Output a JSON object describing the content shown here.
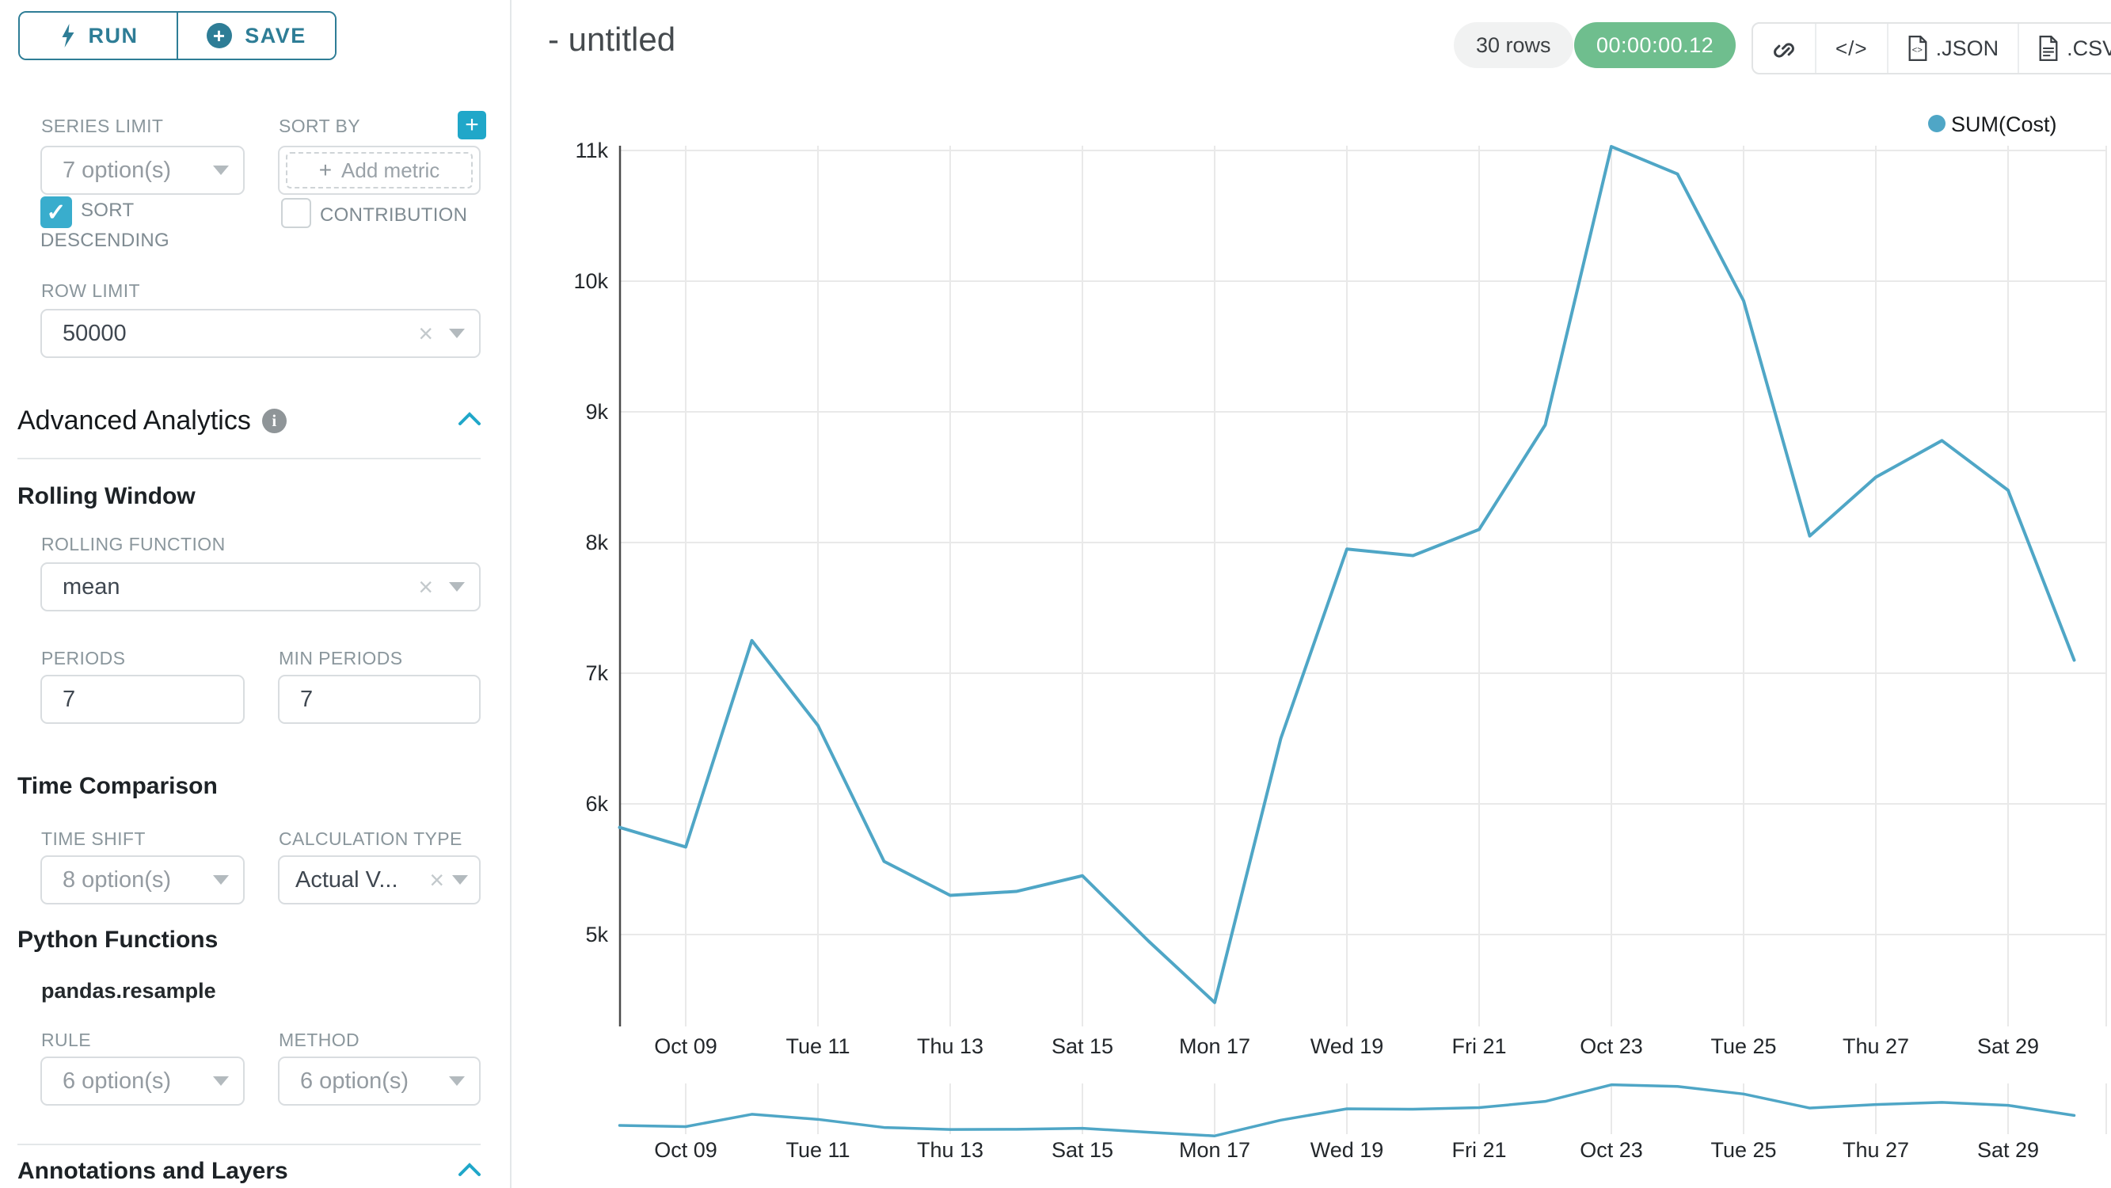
{
  "sidebar": {
    "run_label": "RUN",
    "save_label": "SAVE",
    "series_limit": {
      "label": "SERIES LIMIT",
      "value": "7 option(s)"
    },
    "sort_by": {
      "label": "SORT BY",
      "placeholder": "Add metric"
    },
    "sort_descending": {
      "label_line1": "SORT",
      "label_line2": "DESCENDING",
      "checked": true,
      "check_glyph": "✓"
    },
    "contribution": {
      "label": "CONTRIBUTION",
      "checked": false
    },
    "row_limit": {
      "label": "ROW LIMIT",
      "value": "50000"
    },
    "advanced_analytics": {
      "title": "Advanced Analytics",
      "info_glyph": "i"
    },
    "rolling_window": {
      "title": "Rolling Window",
      "rolling_function": {
        "label": "ROLLING FUNCTION",
        "value": "mean"
      },
      "periods": {
        "label": "PERIODS",
        "value": "7"
      },
      "min_periods": {
        "label": "MIN PERIODS",
        "value": "7"
      }
    },
    "time_comparison": {
      "title": "Time Comparison",
      "time_shift": {
        "label": "TIME SHIFT",
        "value": "8 option(s)"
      },
      "calculation_type": {
        "label": "CALCULATION TYPE",
        "value": "Actual V..."
      }
    },
    "python_functions": {
      "title": "Python Functions",
      "subtitle": "pandas.resample",
      "rule": {
        "label": "RULE",
        "value": "6 option(s)"
      },
      "method": {
        "label": "METHOD",
        "value": "6 option(s)"
      }
    },
    "annotations": {
      "title": "Annotations and Layers"
    },
    "clear_glyph": "×",
    "add_glyph": "+"
  },
  "header": {
    "title": "- untitled",
    "rows_badge": "30 rows",
    "timer_badge": "00:00:00.12",
    "code_label": "</>",
    "export_json_label": ".JSON",
    "export_csv_label": ".CSV"
  },
  "icons": {
    "run": "lightning-bolt",
    "save": "plus-circle",
    "sort_by_add": "plus",
    "advanced_analytics_info": "info-circle",
    "section_collapse": "chevron-up",
    "share": "chain-link",
    "embed": "code-brackets",
    "export_json": "file-code",
    "export_csv": "file-lines",
    "menu": "hamburger"
  },
  "colors": {
    "accent_teal": "#20a7c9",
    "run_save_teal": "#2e7d96",
    "checkbox_teal": "#39adcd",
    "timer_green": "#6fbe8e",
    "line_blue": "#4fa6c6",
    "gridline": "#e9e9e9",
    "axis": "#4a4a4a",
    "tick_text": "#23272b"
  },
  "chart_data": {
    "type": "line",
    "title": "",
    "xlabel": "",
    "ylabel": "",
    "legend_position": "top-right",
    "grid": true,
    "ylim": [
      4400,
      11200
    ],
    "y_ticks": [
      {
        "label": "5k",
        "value": 5000
      },
      {
        "label": "6k",
        "value": 6000
      },
      {
        "label": "7k",
        "value": 7000
      },
      {
        "label": "8k",
        "value": 8000
      },
      {
        "label": "9k",
        "value": 9000
      },
      {
        "label": "10k",
        "value": 10000
      },
      {
        "label": "11k",
        "value": 11000
      }
    ],
    "x_ticks": {
      "labels": [
        "Oct 09",
        "Tue 11",
        "Thu 13",
        "Sat 15",
        "Mon 17",
        "Wed 19",
        "Fri 21",
        "Oct 23",
        "Tue 25",
        "Thu 27",
        "Sat 29"
      ],
      "days": [
        9,
        11,
        13,
        15,
        17,
        19,
        21,
        23,
        25,
        27,
        29
      ]
    },
    "series": [
      {
        "name": "SUM(Cost)",
        "dates": [
          "Oct 08",
          "Oct 09",
          "Oct 10",
          "Oct 11",
          "Oct 12",
          "Oct 13",
          "Oct 14",
          "Oct 15",
          "Oct 16",
          "Oct 17",
          "Oct 18",
          "Oct 19",
          "Oct 20",
          "Oct 21",
          "Oct 22",
          "Oct 23",
          "Oct 24",
          "Oct 25",
          "Oct 26",
          "Oct 27",
          "Oct 28",
          "Oct 29",
          "Oct 30"
        ],
        "days": [
          8,
          9,
          10,
          11,
          12,
          13,
          14,
          15,
          16,
          17,
          18,
          19,
          20,
          21,
          22,
          23,
          24,
          25,
          26,
          27,
          28,
          29,
          30
        ],
        "values": [
          5820,
          5670,
          7250,
          6600,
          5560,
          5300,
          5330,
          5450,
          4950,
          4480,
          6500,
          7950,
          7900,
          8100,
          8900,
          11030,
          10820,
          9850,
          8050,
          8500,
          8780,
          8400,
          7100
        ]
      }
    ],
    "mini_map": true
  }
}
